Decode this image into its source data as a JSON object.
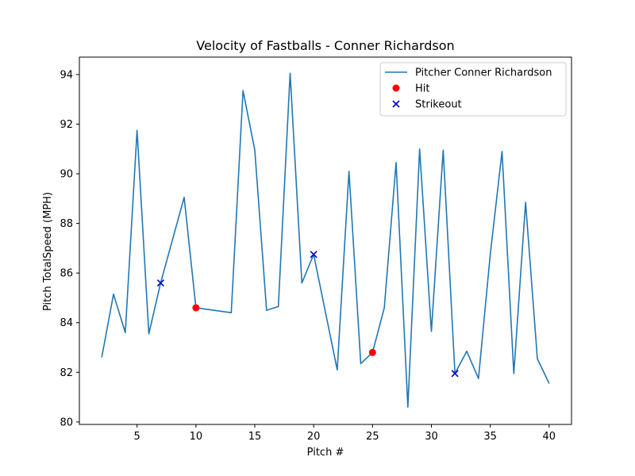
{
  "chart_data": {
    "type": "line",
    "title": "Velocity of Fastballs - Conner Richardson",
    "xlabel": "Pitch #",
    "ylabel": "Pitch TotalSpeed (MPH)",
    "xlim": [
      0.1,
      41.9
    ],
    "ylim": [
      79.9,
      94.7
    ],
    "xticks": [
      5,
      10,
      15,
      20,
      25,
      30,
      35,
      40
    ],
    "yticks": [
      80,
      82,
      84,
      86,
      88,
      90,
      92,
      94
    ],
    "grid": false,
    "legend_position": "top-right",
    "series": [
      {
        "name": "Pitcher Conner Richardson",
        "kind": "line",
        "color": "#1f77b4",
        "x": [
          2,
          3,
          4,
          5,
          6,
          7,
          9,
          10,
          13,
          14,
          15,
          16,
          17,
          18,
          19,
          20,
          22,
          23,
          24,
          25,
          26,
          27,
          28,
          29,
          30,
          31,
          32,
          33,
          34,
          35,
          36,
          37,
          38,
          39,
          40
        ],
        "y": [
          82.6,
          85.15,
          83.6,
          91.75,
          83.55,
          85.6,
          89.05,
          84.6,
          84.4,
          93.35,
          90.95,
          84.5,
          84.65,
          94.05,
          85.6,
          86.75,
          82.1,
          90.1,
          82.35,
          82.8,
          84.6,
          90.45,
          80.6,
          91.0,
          83.65,
          90.95,
          81.95,
          82.85,
          81.75,
          86.75,
          90.9,
          81.95,
          88.85,
          82.55,
          81.55
        ]
      },
      {
        "name": "Hit",
        "kind": "scatter",
        "marker": "circle",
        "color": "#ff0000",
        "x": [
          10,
          25
        ],
        "y": [
          84.6,
          82.8
        ]
      },
      {
        "name": "Strikeout",
        "kind": "scatter",
        "marker": "x",
        "color": "#0000cc",
        "x": [
          7,
          20,
          32
        ],
        "y": [
          85.6,
          86.75,
          81.95
        ]
      }
    ]
  }
}
